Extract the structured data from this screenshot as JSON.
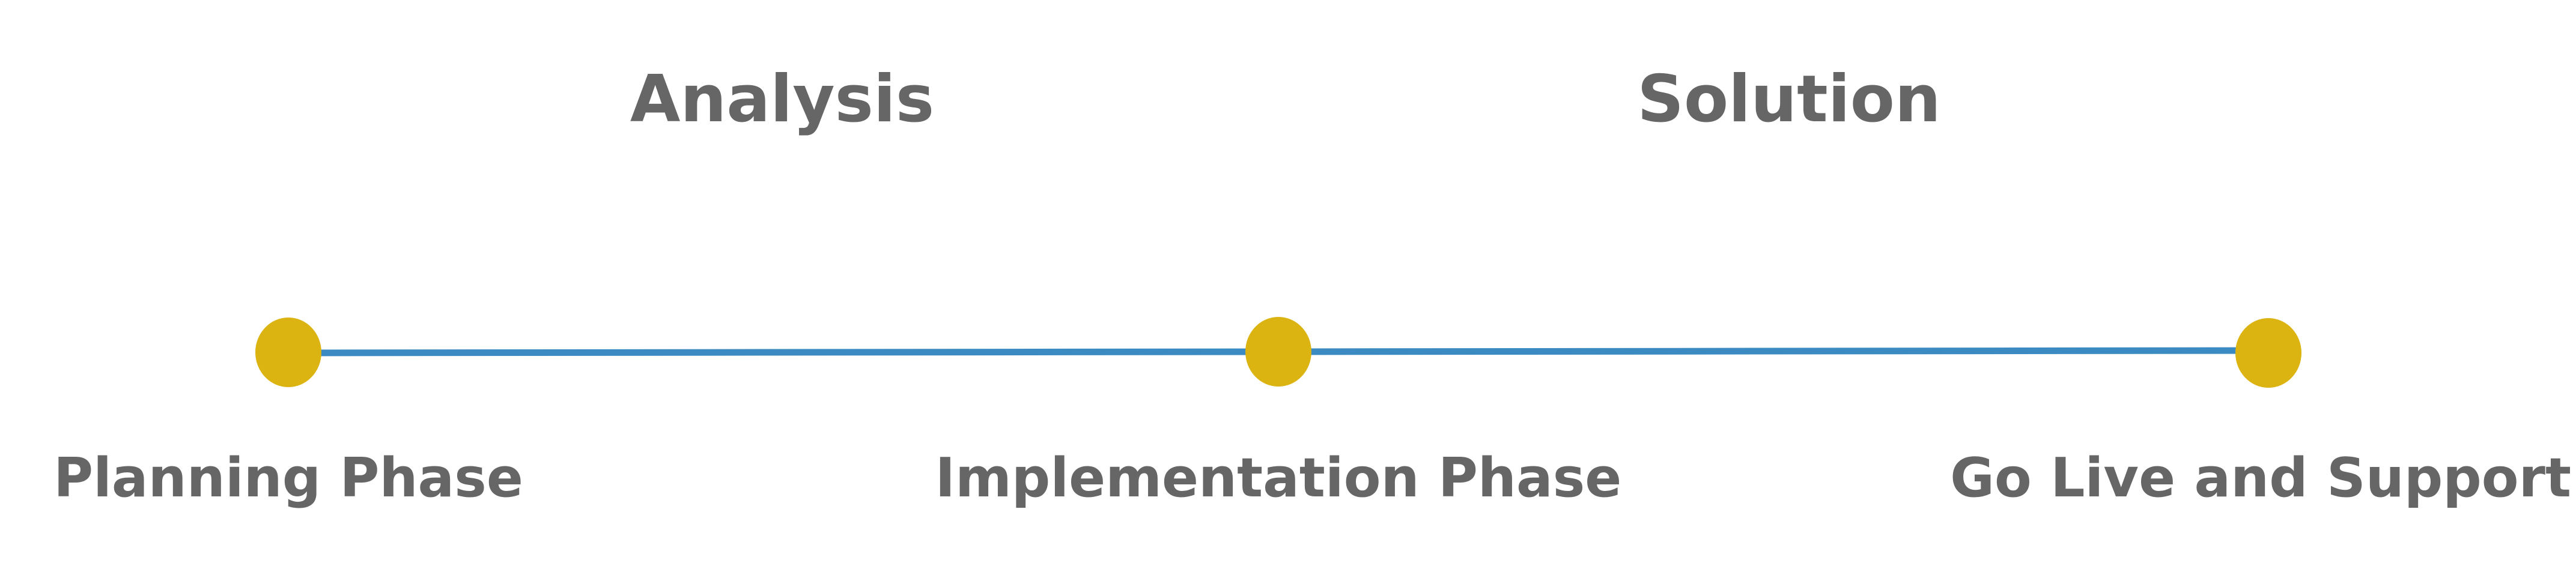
{
  "stages": [
    {
      "label": "Analysis"
    },
    {
      "label": "Solution"
    }
  ],
  "phases": [
    {
      "label": "Planning Phase"
    },
    {
      "label": "Implementation Phase"
    },
    {
      "label": "Go Live and Support"
    }
  ],
  "colors": {
    "line": "#3b8bc2",
    "milestone": "#dbb412",
    "text": "#666666",
    "background": "#ffffff"
  }
}
